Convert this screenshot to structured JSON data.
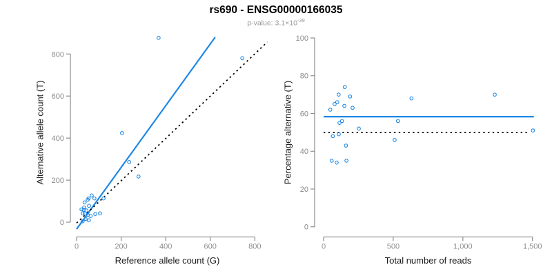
{
  "header": {
    "title": "rs690 - ENSG00000166035",
    "subtitle_prefix": "p-value: 3.1×10",
    "subtitle_exponent": "-39"
  },
  "colors": {
    "accent_blue": "#1e88e5",
    "axis_gray": "#8c8c8c",
    "tick_label_gray": "#8c8c8c",
    "dotted_black": "#000000",
    "axis_title_dark": "#1a1a1a",
    "subtitle_gray": "#969696",
    "background": "#ffffff"
  },
  "chart_data": [
    {
      "type": "scatter",
      "panel": "left",
      "xlabel": "Reference allele count (G)",
      "ylabel": "Alternative allele count (T)",
      "xlim": [
        0,
        860
      ],
      "ylim": [
        0,
        890
      ],
      "grid": false,
      "xticks": [
        0,
        200,
        400,
        600,
        800
      ],
      "xtick_labels": [
        "0",
        "200",
        "400",
        "600",
        "800"
      ],
      "yticks": [
        0,
        200,
        400,
        600,
        800
      ],
      "ytick_labels": [
        "0",
        "200",
        "400",
        "600",
        "800"
      ],
      "points": [
        [
          368,
          877
        ],
        [
          744,
          780
        ],
        [
          204,
          424
        ],
        [
          236,
          286
        ],
        [
          278,
          217
        ],
        [
          121,
          113
        ],
        [
          54,
          113
        ],
        [
          80,
          113
        ],
        [
          68,
          127
        ],
        [
          50,
          107
        ],
        [
          36,
          94
        ],
        [
          56,
          78
        ],
        [
          34,
          70
        ],
        [
          22,
          61
        ],
        [
          32,
          59
        ],
        [
          44,
          56
        ],
        [
          27,
          42
        ],
        [
          38,
          42
        ],
        [
          50,
          34
        ],
        [
          63,
          29
        ],
        [
          84,
          39
        ],
        [
          105,
          42
        ],
        [
          40,
          15
        ],
        [
          55,
          9
        ],
        [
          27,
          4
        ]
      ],
      "lines": [
        {
          "name": "regression-line",
          "style": "solid",
          "color_key": "accent_blue",
          "x1": 0,
          "y1": -33,
          "x2": 622,
          "y2": 880
        },
        {
          "name": "identity-line",
          "style": "dotted",
          "color_key": "dotted_black",
          "x1": 0,
          "y1": -4,
          "x2": 856,
          "y2": 857
        }
      ]
    },
    {
      "type": "scatter",
      "panel": "right",
      "xlabel": "Total number of reads",
      "ylabel": "Percentage alternative (T)",
      "xlim": [
        0,
        1550
      ],
      "ylim": [
        0,
        100
      ],
      "grid": false,
      "xticks": [
        0,
        500,
        1000,
        1500
      ],
      "xtick_labels": [
        "0",
        "500",
        "1,000",
        "1,500"
      ],
      "yticks": [
        0,
        20,
        40,
        60,
        80,
        100
      ],
      "ytick_labels": [
        "0",
        "20",
        "40",
        "60",
        "80",
        "100"
      ],
      "points": [
        [
          48,
          62
        ],
        [
          58,
          35
        ],
        [
          94,
          34
        ],
        [
          164,
          35
        ],
        [
          66,
          48
        ],
        [
          79,
          65
        ],
        [
          98,
          66
        ],
        [
          108,
          70
        ],
        [
          109,
          49
        ],
        [
          114,
          55
        ],
        [
          132,
          56
        ],
        [
          152,
          74
        ],
        [
          149,
          64
        ],
        [
          160,
          43
        ],
        [
          190,
          69
        ],
        [
          208,
          63
        ],
        [
          253,
          52
        ],
        [
          510,
          46
        ],
        [
          534,
          56
        ],
        [
          631,
          68
        ],
        [
          1229,
          70
        ],
        [
          1503,
          51
        ]
      ],
      "lines": [
        {
          "name": "mean-percentage-line",
          "style": "solid",
          "color_key": "accent_blue",
          "x1": 0,
          "y1": 58.3,
          "x2": 1510,
          "y2": 58.3
        },
        {
          "name": "expected-50pct-line",
          "style": "dotted",
          "color_key": "dotted_black",
          "x1": 0,
          "y1": 50,
          "x2": 1470,
          "y2": 50
        }
      ]
    }
  ]
}
